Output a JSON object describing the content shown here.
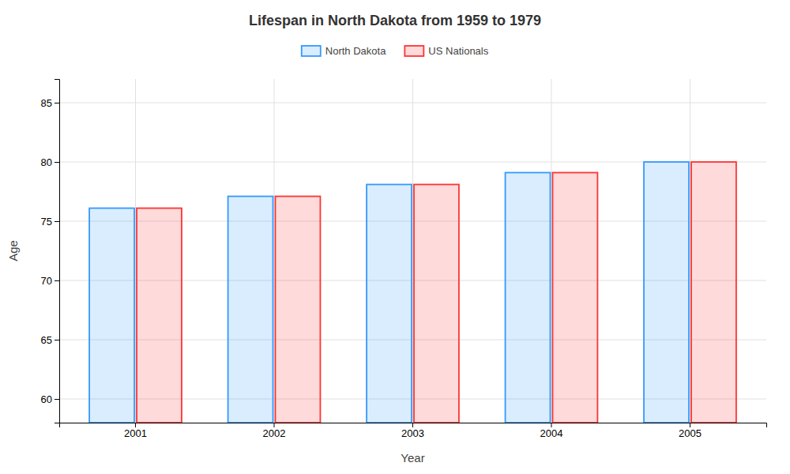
{
  "chart_data": {
    "type": "bar",
    "title": "Lifespan in North Dakota from 1959 to 1979",
    "x_label": "Year",
    "y_label": "Age",
    "categories": [
      "2001",
      "2002",
      "2003",
      "2004",
      "2005"
    ],
    "series": [
      {
        "name": "North Dakota",
        "color": "#3399ff",
        "values": [
          76.1,
          77.1,
          78.1,
          79.1,
          80.0
        ]
      },
      {
        "name": "US Nationals",
        "color": "#ff3333",
        "values": [
          76.1,
          77.1,
          78.1,
          79.1,
          80.0
        ]
      }
    ],
    "ylim": [
      58,
      87
    ],
    "yticks": [
      60,
      65,
      70,
      75,
      80,
      85
    ],
    "grid": true,
    "legend": "top"
  }
}
